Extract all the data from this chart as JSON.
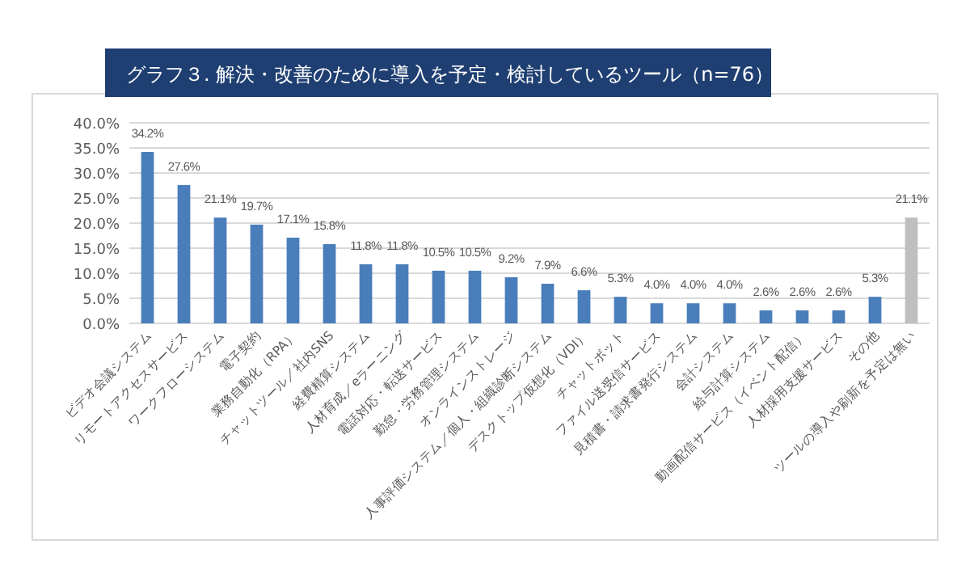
{
  "chart_data": {
    "type": "bar",
    "title": "グラフ３. 解決・改善のために導入を予定・検討しているツール（n=76）",
    "categories": [
      "ビデオ会議システム",
      "リモートアクセスサービス",
      "ワークフローシステム",
      "電子契約",
      "業務自動化（RPA）",
      "チャットツール／社内SNS",
      "経費精算システム",
      "人材育成／eラーニング",
      "電話対応・転送サービス",
      "勤怠・労務管理システム",
      "オンラインストレージ",
      "人事評価システム／個人・組織診断システム",
      "デスクトップ仮想化（VDI）",
      "チャットボット",
      "ファイル送受信サービス",
      "見積書・請求書発行システム",
      "会計システム",
      "給与計算システム",
      "動画配信サービス（イベント配信）",
      "人材採用支援サービス",
      "その他",
      "ツールの導入や刷新を予定は無い"
    ],
    "values": [
      34.2,
      27.6,
      21.1,
      19.7,
      17.1,
      15.8,
      11.8,
      11.8,
      10.5,
      10.5,
      9.2,
      7.9,
      6.6,
      5.3,
      4.0,
      4.0,
      4.0,
      2.6,
      2.6,
      2.6,
      5.3,
      21.1
    ],
    "value_labels": [
      "34.2%",
      "27.6%",
      "21.1%",
      "19.7%",
      "17.1%",
      "15.8%",
      "11.8%",
      "11.8%",
      "10.5%",
      "10.5%",
      "9.2%",
      "7.9%",
      "6.6%",
      "5.3%",
      "4.0%",
      "4.0%",
      "4.0%",
      "2.6%",
      "2.6%",
      "2.6%",
      "5.3%",
      "21.1%"
    ],
    "colors": [
      "#4a7ebb",
      "#4a7ebb",
      "#4a7ebb",
      "#4a7ebb",
      "#4a7ebb",
      "#4a7ebb",
      "#4a7ebb",
      "#4a7ebb",
      "#4a7ebb",
      "#4a7ebb",
      "#4a7ebb",
      "#4a7ebb",
      "#4a7ebb",
      "#4a7ebb",
      "#4a7ebb",
      "#4a7ebb",
      "#4a7ebb",
      "#4a7ebb",
      "#4a7ebb",
      "#4a7ebb",
      "#4a7ebb",
      "#bfbfbf"
    ],
    "ylim": [
      0,
      40
    ],
    "yticks": [
      {
        "value": 0,
        "label": "0.0%"
      },
      {
        "value": 5,
        "label": "5.0%"
      },
      {
        "value": 10,
        "label": "10.0%"
      },
      {
        "value": 15,
        "label": "15.0%"
      },
      {
        "value": 20,
        "label": "20.0%"
      },
      {
        "value": 25,
        "label": "25.0%"
      },
      {
        "value": 30,
        "label": "30.0%"
      },
      {
        "value": 35,
        "label": "35.0%"
      },
      {
        "value": 40,
        "label": "40.0%"
      }
    ],
    "grid": "y"
  }
}
